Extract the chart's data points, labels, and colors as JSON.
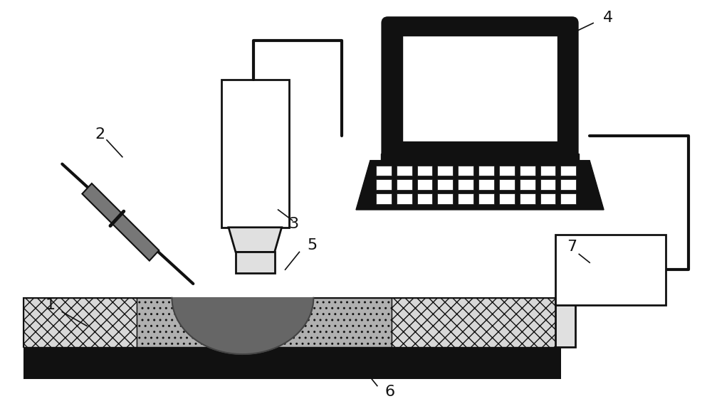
{
  "bg_color": "#ffffff",
  "fig_width": 10.0,
  "fig_height": 5.85,
  "black": "#111111",
  "white": "#ffffff",
  "light_gray": "#e0e0e0",
  "dark_gray": "#444444",
  "mid_gray": "#888888",
  "porous_dark": "#b0b0b0",
  "porous_light": "#d8d8d8",
  "droplet_color": "#666666",
  "syringe_gray": "#777777"
}
